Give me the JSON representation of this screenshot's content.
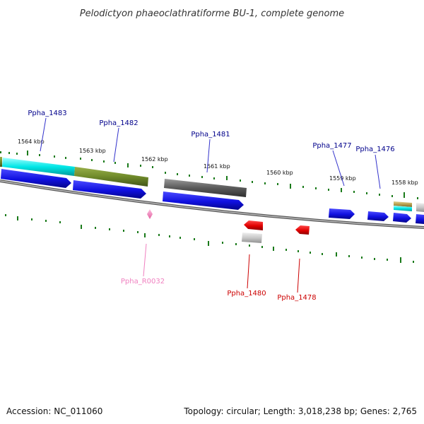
{
  "title": "Pelodictyon phaeoclathratiforme BU-1, complete genome",
  "footer": {
    "accession": "Accession: NC_011060",
    "topology": "Topology: circular; Length: 3,018,238 bp; Genes: 2,765"
  },
  "colors": {
    "cds_forward": "#1010e0",
    "cds_reverse": "#e00000",
    "rna": "#f080c0",
    "label_forward": "#00008b",
    "label_reverse": "#cc0000",
    "label_rna": "#f080c0",
    "ticks": "#1a7a1a",
    "backbone": "#8a8a8a"
  },
  "kbp_ticks": [
    "1564 kbp",
    "1563 kbp",
    "1562 kbp",
    "1561 kbp",
    "1560 kbp",
    "1559 kbp",
    "1558 kbp"
  ],
  "gene_labels": {
    "forward": [
      "Ppha_1483",
      "Ppha_1482",
      "Ppha_1481",
      "Ppha_1477",
      "Ppha_1476"
    ],
    "reverse": [
      "Ppha_1480",
      "Ppha_1478"
    ],
    "rna": [
      "Ppha_R0032"
    ]
  }
}
